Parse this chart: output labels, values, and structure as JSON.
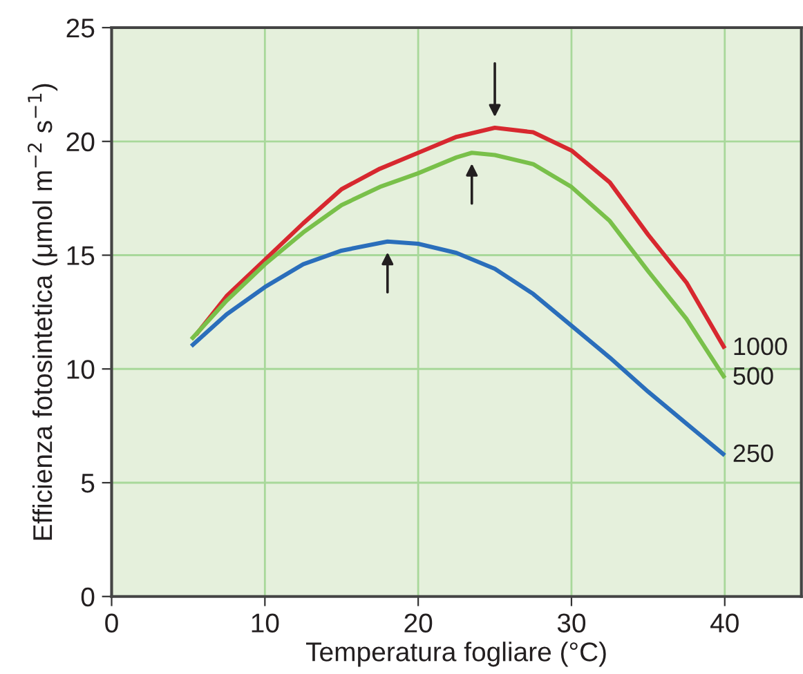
{
  "chart_data": {
    "type": "line",
    "xlabel": "Temperatura fogliare (°C)",
    "ylabel": "Efficienza fotosintetica (μmol m$^{−2}$ s$^{−1}$)",
    "xlim": [
      0,
      45
    ],
    "ylim": [
      0,
      25
    ],
    "xticks": [
      0,
      10,
      20,
      30,
      40
    ],
    "yticks": [
      0,
      5,
      10,
      15,
      20,
      25
    ],
    "grid": true,
    "legend": false,
    "marker": "none",
    "line_style": "solid",
    "series": [
      {
        "name": "1000",
        "color": "#d7282f",
        "x": [
          5.5,
          7.5,
          10,
          12.5,
          15,
          17.5,
          20,
          22.5,
          25,
          27.5,
          30,
          32.5,
          35,
          37.5,
          40
        ],
        "values": [
          11.5,
          13.2,
          14.8,
          16.4,
          17.9,
          18.8,
          19.5,
          20.2,
          20.6,
          20.4,
          19.6,
          18.2,
          15.9,
          13.8,
          10.9
        ]
      },
      {
        "name": "500",
        "color": "#79c04a",
        "x": [
          5.2,
          7.5,
          10,
          12.5,
          15,
          17.5,
          20,
          22.5,
          23.5,
          25,
          27.5,
          30,
          32.5,
          35,
          37.5,
          40
        ],
        "values": [
          11.3,
          13.0,
          14.6,
          16.0,
          17.2,
          18.0,
          18.6,
          19.3,
          19.5,
          19.4,
          19.0,
          18.0,
          16.5,
          14.3,
          12.2,
          9.6
        ]
      },
      {
        "name": "250",
        "color": "#2a6ebb",
        "x": [
          5.2,
          7.5,
          10,
          12.5,
          15,
          18,
          20,
          22.5,
          25,
          27.5,
          30,
          32.5,
          35,
          37.5,
          40
        ],
        "values": [
          11.0,
          12.4,
          13.6,
          14.6,
          15.2,
          15.6,
          15.5,
          15.1,
          14.4,
          13.3,
          11.9,
          10.5,
          9.0,
          7.6,
          6.2
        ]
      }
    ]
  }
}
